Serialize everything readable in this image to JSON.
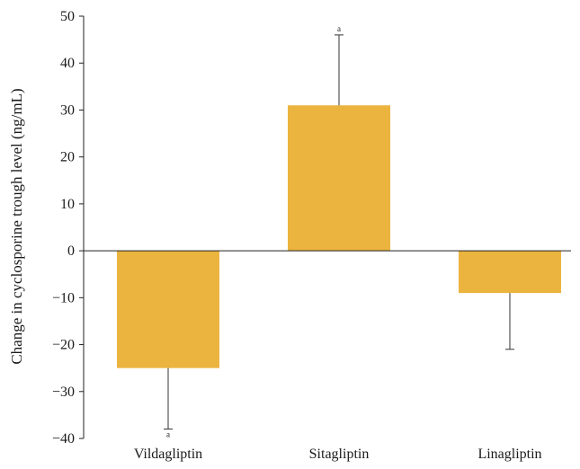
{
  "chart_data": {
    "type": "bar",
    "title": "",
    "xlabel": "",
    "ylabel": "Change in cyclosporine trough level (ng/mL)",
    "categories": [
      "Vildagliptin",
      "Sitagliptin",
      "Linagliptin"
    ],
    "values": [
      -25,
      31,
      -9
    ],
    "error_bars": [
      {
        "category": "Vildagliptin",
        "value": -25,
        "error_end": -38,
        "significance": "a"
      },
      {
        "category": "Sitagliptin",
        "value": 31,
        "error_end": 46,
        "significance": "a"
      },
      {
        "category": "Linagliptin",
        "value": -9,
        "error_end": -21,
        "significance": ""
      }
    ],
    "ylim": [
      -40,
      50
    ],
    "yticks": [
      -40,
      -30,
      -20,
      -10,
      0,
      10,
      20,
      30,
      40,
      50
    ],
    "ytick_labels": [
      "−40",
      "−30",
      "−20",
      "−10",
      "0",
      "10",
      "20",
      "30",
      "40",
      "50"
    ],
    "bar_color": "#EBB43F",
    "grid": false,
    "legend": "none"
  }
}
